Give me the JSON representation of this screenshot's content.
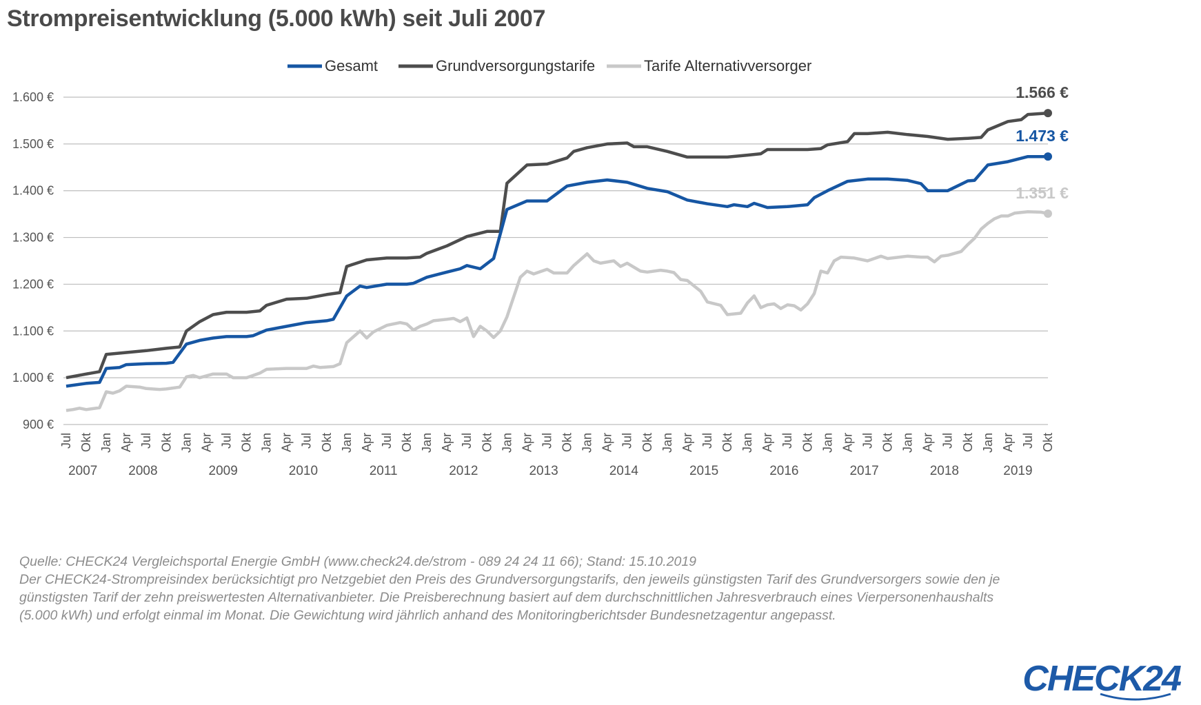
{
  "title": "Strompreisentwicklung (5.000 kWh) seit Juli 2007",
  "legend": [
    {
      "label": "Gesamt",
      "color": "#1656a3"
    },
    {
      "label": "Grundversorgungstarife",
      "color": "#4d4d4d"
    },
    {
      "label": "Tarife Alternativversorger",
      "color": "#c8c8c8"
    }
  ],
  "chart_data": {
    "type": "line",
    "title": "Strompreisentwicklung (5.000 kWh) seit Juli 2007",
    "x_start": "2007-07",
    "x_end": "2019-10",
    "ylim": [
      900,
      1600
    ],
    "y_ticks": [
      "900 €",
      "1.000 €",
      "1.100 €",
      "1.200 €",
      "1.300 €",
      "1.400 €",
      "1.500 €",
      "1.600 €"
    ],
    "month_tick_labels": [
      "Jul",
      "Okt",
      "Jan",
      "Apr"
    ],
    "years": [
      "2007",
      "2008",
      "2009",
      "2010",
      "2011",
      "2012",
      "2013",
      "2014",
      "2015",
      "2016",
      "2017",
      "2018",
      "2019"
    ],
    "grid": true,
    "legend_position": "top-center",
    "series": [
      {
        "name": "Gesamt",
        "color": "#1656a3",
        "end_label": "1.473 €",
        "points": [
          [
            "2007-07",
            982
          ],
          [
            "2007-10",
            988
          ],
          [
            "2007-12",
            990
          ],
          [
            "2008-01",
            1020
          ],
          [
            "2008-03",
            1022
          ],
          [
            "2008-04",
            1028
          ],
          [
            "2008-07",
            1030
          ],
          [
            "2008-10",
            1031
          ],
          [
            "2008-11",
            1033
          ],
          [
            "2009-01",
            1072
          ],
          [
            "2009-03",
            1080
          ],
          [
            "2009-05",
            1085
          ],
          [
            "2009-07",
            1088
          ],
          [
            "2009-10",
            1088
          ],
          [
            "2009-11",
            1090
          ],
          [
            "2010-01",
            1102
          ],
          [
            "2010-04",
            1110
          ],
          [
            "2010-07",
            1118
          ],
          [
            "2010-10",
            1122
          ],
          [
            "2010-11",
            1125
          ],
          [
            "2011-01",
            1175
          ],
          [
            "2011-03",
            1196
          ],
          [
            "2011-04",
            1193
          ],
          [
            "2011-07",
            1200
          ],
          [
            "2011-10",
            1200
          ],
          [
            "2011-11",
            1202
          ],
          [
            "2012-01",
            1215
          ],
          [
            "2012-04",
            1226
          ],
          [
            "2012-06",
            1233
          ],
          [
            "2012-07",
            1240
          ],
          [
            "2012-09",
            1233
          ],
          [
            "2012-11",
            1255
          ],
          [
            "2013-01",
            1360
          ],
          [
            "2013-04",
            1378
          ],
          [
            "2013-07",
            1378
          ],
          [
            "2013-10",
            1410
          ],
          [
            "2014-01",
            1418
          ],
          [
            "2014-04",
            1423
          ],
          [
            "2014-07",
            1418
          ],
          [
            "2014-10",
            1405
          ],
          [
            "2015-01",
            1398
          ],
          [
            "2015-04",
            1380
          ],
          [
            "2015-07",
            1372
          ],
          [
            "2015-10",
            1366
          ],
          [
            "2015-11",
            1370
          ],
          [
            "2016-01",
            1366
          ],
          [
            "2016-02",
            1373
          ],
          [
            "2016-04",
            1364
          ],
          [
            "2016-07",
            1366
          ],
          [
            "2016-10",
            1370
          ],
          [
            "2016-11",
            1385
          ],
          [
            "2017-01",
            1400
          ],
          [
            "2017-04",
            1420
          ],
          [
            "2017-07",
            1425
          ],
          [
            "2017-10",
            1425
          ],
          [
            "2018-01",
            1422
          ],
          [
            "2018-03",
            1415
          ],
          [
            "2018-04",
            1400
          ],
          [
            "2018-07",
            1400
          ],
          [
            "2018-10",
            1421
          ],
          [
            "2018-11",
            1422
          ],
          [
            "2019-01",
            1455
          ],
          [
            "2019-04",
            1462
          ],
          [
            "2019-07",
            1473
          ],
          [
            "2019-10",
            1473
          ]
        ]
      },
      {
        "name": "Grundversorgungstarife",
        "color": "#4d4d4d",
        "end_label": "1.566 €",
        "points": [
          [
            "2007-07",
            1000
          ],
          [
            "2007-10",
            1008
          ],
          [
            "2007-12",
            1013
          ],
          [
            "2008-01",
            1050
          ],
          [
            "2008-04",
            1054
          ],
          [
            "2008-07",
            1058
          ],
          [
            "2008-10",
            1063
          ],
          [
            "2008-12",
            1066
          ],
          [
            "2009-01",
            1100
          ],
          [
            "2009-03",
            1120
          ],
          [
            "2009-05",
            1135
          ],
          [
            "2009-07",
            1140
          ],
          [
            "2009-10",
            1140
          ],
          [
            "2009-12",
            1143
          ],
          [
            "2010-01",
            1155
          ],
          [
            "2010-04",
            1168
          ],
          [
            "2010-07",
            1170
          ],
          [
            "2010-10",
            1178
          ],
          [
            "2010-12",
            1182
          ],
          [
            "2011-01",
            1238
          ],
          [
            "2011-04",
            1252
          ],
          [
            "2011-07",
            1256
          ],
          [
            "2011-10",
            1256
          ],
          [
            "2011-12",
            1258
          ],
          [
            "2012-01",
            1266
          ],
          [
            "2012-04",
            1282
          ],
          [
            "2012-07",
            1302
          ],
          [
            "2012-10",
            1313
          ],
          [
            "2012-12",
            1313
          ],
          [
            "2013-01",
            1416
          ],
          [
            "2013-04",
            1455
          ],
          [
            "2013-07",
            1457
          ],
          [
            "2013-10",
            1470
          ],
          [
            "2013-11",
            1484
          ],
          [
            "2014-01",
            1492
          ],
          [
            "2014-04",
            1500
          ],
          [
            "2014-07",
            1502
          ],
          [
            "2014-08",
            1494
          ],
          [
            "2014-10",
            1494
          ],
          [
            "2015-01",
            1484
          ],
          [
            "2015-04",
            1472
          ],
          [
            "2015-07",
            1472
          ],
          [
            "2015-10",
            1472
          ],
          [
            "2016-01",
            1476
          ],
          [
            "2016-03",
            1479
          ],
          [
            "2016-04",
            1488
          ],
          [
            "2016-07",
            1488
          ],
          [
            "2016-10",
            1488
          ],
          [
            "2016-12",
            1490
          ],
          [
            "2017-01",
            1498
          ],
          [
            "2017-04",
            1505
          ],
          [
            "2017-05",
            1522
          ],
          [
            "2017-07",
            1522
          ],
          [
            "2017-10",
            1525
          ],
          [
            "2018-01",
            1520
          ],
          [
            "2018-04",
            1516
          ],
          [
            "2018-07",
            1510
          ],
          [
            "2018-10",
            1512
          ],
          [
            "2018-12",
            1514
          ],
          [
            "2019-01",
            1530
          ],
          [
            "2019-04",
            1548
          ],
          [
            "2019-06",
            1552
          ],
          [
            "2019-07",
            1563
          ],
          [
            "2019-10",
            1566
          ]
        ]
      },
      {
        "name": "Tarife Alternativversorger",
        "color": "#c8c8c8",
        "end_label": "1.351 €",
        "points": [
          [
            "2007-07",
            930
          ],
          [
            "2007-08",
            932
          ],
          [
            "2007-09",
            935
          ],
          [
            "2007-10",
            932
          ],
          [
            "2007-12",
            936
          ],
          [
            "2008-01",
            970
          ],
          [
            "2008-02",
            967
          ],
          [
            "2008-03",
            972
          ],
          [
            "2008-04",
            982
          ],
          [
            "2008-06",
            980
          ],
          [
            "2008-07",
            977
          ],
          [
            "2008-09",
            975
          ],
          [
            "2008-10",
            976
          ],
          [
            "2008-12",
            980
          ],
          [
            "2009-01",
            1002
          ],
          [
            "2009-02",
            1005
          ],
          [
            "2009-03",
            1000
          ],
          [
            "2009-05",
            1008
          ],
          [
            "2009-07",
            1008
          ],
          [
            "2009-08",
            1000
          ],
          [
            "2009-10",
            1000
          ],
          [
            "2009-12",
            1010
          ],
          [
            "2010-01",
            1018
          ],
          [
            "2010-04",
            1020
          ],
          [
            "2010-07",
            1020
          ],
          [
            "2010-08",
            1025
          ],
          [
            "2010-09",
            1022
          ],
          [
            "2010-11",
            1024
          ],
          [
            "2010-12",
            1030
          ],
          [
            "2011-01",
            1075
          ],
          [
            "2011-03",
            1100
          ],
          [
            "2011-04",
            1085
          ],
          [
            "2011-05",
            1098
          ],
          [
            "2011-07",
            1112
          ],
          [
            "2011-09",
            1118
          ],
          [
            "2011-10",
            1115
          ],
          [
            "2011-11",
            1102
          ],
          [
            "2011-12",
            1110
          ],
          [
            "2012-01",
            1115
          ],
          [
            "2012-02",
            1122
          ],
          [
            "2012-04",
            1125
          ],
          [
            "2012-05",
            1127
          ],
          [
            "2012-06",
            1120
          ],
          [
            "2012-07",
            1128
          ],
          [
            "2012-08",
            1088
          ],
          [
            "2012-09",
            1110
          ],
          [
            "2012-10",
            1100
          ],
          [
            "2012-11",
            1086
          ],
          [
            "2012-12",
            1100
          ],
          [
            "2013-01",
            1130
          ],
          [
            "2013-03",
            1215
          ],
          [
            "2013-04",
            1228
          ],
          [
            "2013-05",
            1222
          ],
          [
            "2013-07",
            1232
          ],
          [
            "2013-08",
            1224
          ],
          [
            "2013-10",
            1224
          ],
          [
            "2013-11",
            1240
          ],
          [
            "2014-01",
            1265
          ],
          [
            "2014-02",
            1250
          ],
          [
            "2014-03",
            1245
          ],
          [
            "2014-05",
            1250
          ],
          [
            "2014-06",
            1238
          ],
          [
            "2014-07",
            1245
          ],
          [
            "2014-09",
            1228
          ],
          [
            "2014-10",
            1226
          ],
          [
            "2014-12",
            1230
          ],
          [
            "2015-01",
            1228
          ],
          [
            "2015-02",
            1225
          ],
          [
            "2015-03",
            1210
          ],
          [
            "2015-04",
            1208
          ],
          [
            "2015-06",
            1185
          ],
          [
            "2015-07",
            1162
          ],
          [
            "2015-09",
            1155
          ],
          [
            "2015-10",
            1135
          ],
          [
            "2015-12",
            1138
          ],
          [
            "2016-01",
            1160
          ],
          [
            "2016-02",
            1175
          ],
          [
            "2016-03",
            1150
          ],
          [
            "2016-04",
            1156
          ],
          [
            "2016-05",
            1158
          ],
          [
            "2016-06",
            1148
          ],
          [
            "2016-07",
            1156
          ],
          [
            "2016-08",
            1154
          ],
          [
            "2016-09",
            1145
          ],
          [
            "2016-10",
            1158
          ],
          [
            "2016-11",
            1180
          ],
          [
            "2016-12",
            1228
          ],
          [
            "2017-01",
            1224
          ],
          [
            "2017-02",
            1250
          ],
          [
            "2017-03",
            1258
          ],
          [
            "2017-05",
            1256
          ],
          [
            "2017-07",
            1250
          ],
          [
            "2017-09",
            1260
          ],
          [
            "2017-10",
            1255
          ],
          [
            "2018-01",
            1260
          ],
          [
            "2018-03",
            1258
          ],
          [
            "2018-04",
            1258
          ],
          [
            "2018-05",
            1248
          ],
          [
            "2018-06",
            1260
          ],
          [
            "2018-07",
            1262
          ],
          [
            "2018-09",
            1270
          ],
          [
            "2018-10",
            1285
          ],
          [
            "2018-11",
            1298
          ],
          [
            "2018-12",
            1318
          ],
          [
            "2019-01",
            1330
          ],
          [
            "2019-02",
            1340
          ],
          [
            "2019-03",
            1346
          ],
          [
            "2019-04",
            1346
          ],
          [
            "2019-05",
            1352
          ],
          [
            "2019-07",
            1355
          ],
          [
            "2019-09",
            1354
          ],
          [
            "2019-10",
            1351
          ]
        ]
      }
    ]
  },
  "footnote": [
    "Quelle: CHECK24 Vergleichsportal Energie GmbH (www.check24.de/strom - 089 24 24 11 66); Stand: 15.10.2019",
    "Der CHECK24-Strompreisindex berücksichtigt pro Netzgebiet den Preis des Grundversorgungstarifs, den jeweils günstigsten Tarif des Grundversorgers sowie den je",
    "günstigsten Tarif der zehn preiswertesten Alternativanbieter. Die Preisberechnung basiert auf dem durchschnittlichen Jahresverbrauch eines Vierpersonenhaushalts",
    "(5.000 kWh) und erfolgt einmal im Monat. Die Gewichtung wird jährlich anhand des Monitoringberichtsder Bundesnetzagentur angepasst."
  ],
  "logo": "CHECK24"
}
